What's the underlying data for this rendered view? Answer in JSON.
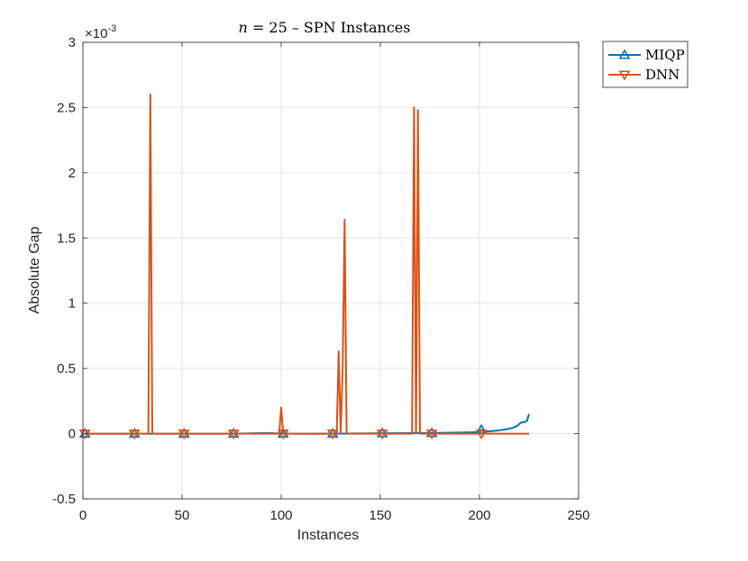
{
  "chart_data": {
    "type": "line",
    "title": "n = 25 – SPN Instances",
    "title_parts": {
      "var": "n",
      "rest": " = 25 – SPN Instances"
    },
    "xlabel": "Instances",
    "ylabel": "Absolute Gap",
    "xlim": [
      0,
      250
    ],
    "ylim": [
      -0.5,
      3
    ],
    "y_scale_exponent": "×10-3",
    "y_exponent_parts": {
      "base": "×10",
      "power": "-3"
    },
    "x_ticks": [
      0,
      50,
      100,
      150,
      200,
      250
    ],
    "x_tick_labels": [
      "0",
      "50",
      "100",
      "150",
      "200",
      "250"
    ],
    "y_ticks": [
      -0.5,
      0,
      0.5,
      1,
      1.5,
      2,
      2.5,
      3
    ],
    "y_tick_labels": [
      "-0.5",
      "0",
      "0.5",
      "1",
      "1.5",
      "2",
      "2.5",
      "3"
    ],
    "grid": true,
    "legend_position": "outside-top-right",
    "series": [
      {
        "name": "MIQP",
        "color": "#0072BD",
        "marker": "triangle-up",
        "x": [
          1,
          26,
          51,
          76,
          93,
          101,
          126,
          151,
          176,
          180,
          190,
          195,
          200,
          201,
          202,
          205,
          210,
          214,
          217,
          219,
          221,
          223,
          224,
          225
        ],
        "y": [
          0,
          0,
          0,
          0,
          0.005,
          0,
          0,
          0.003,
          0.005,
          0.006,
          0.008,
          0.01,
          0.012,
          0.03,
          0.014,
          0.018,
          0.025,
          0.035,
          0.045,
          0.06,
          0.085,
          0.09,
          0.1,
          0.15
        ],
        "marker_x": [
          1,
          26,
          51,
          76,
          101,
          126,
          151,
          176,
          201
        ]
      },
      {
        "name": "DNN",
        "color": "#D95319",
        "marker": "triangle-down",
        "x": [
          1,
          33,
          34,
          35,
          36,
          99,
          100,
          101,
          102,
          128,
          129,
          130,
          131,
          132,
          133,
          134,
          166,
          167,
          168,
          169,
          170,
          171,
          225
        ],
        "y": [
          0,
          0,
          2.6,
          0,
          0,
          0,
          0.2,
          0,
          0,
          0,
          0.63,
          0,
          0.5,
          1.64,
          0,
          0,
          0,
          2.5,
          0,
          2.48,
          0,
          0,
          0
        ],
        "marker_x": [
          1,
          26,
          51,
          76,
          101,
          126,
          151,
          176,
          201
        ]
      }
    ]
  }
}
